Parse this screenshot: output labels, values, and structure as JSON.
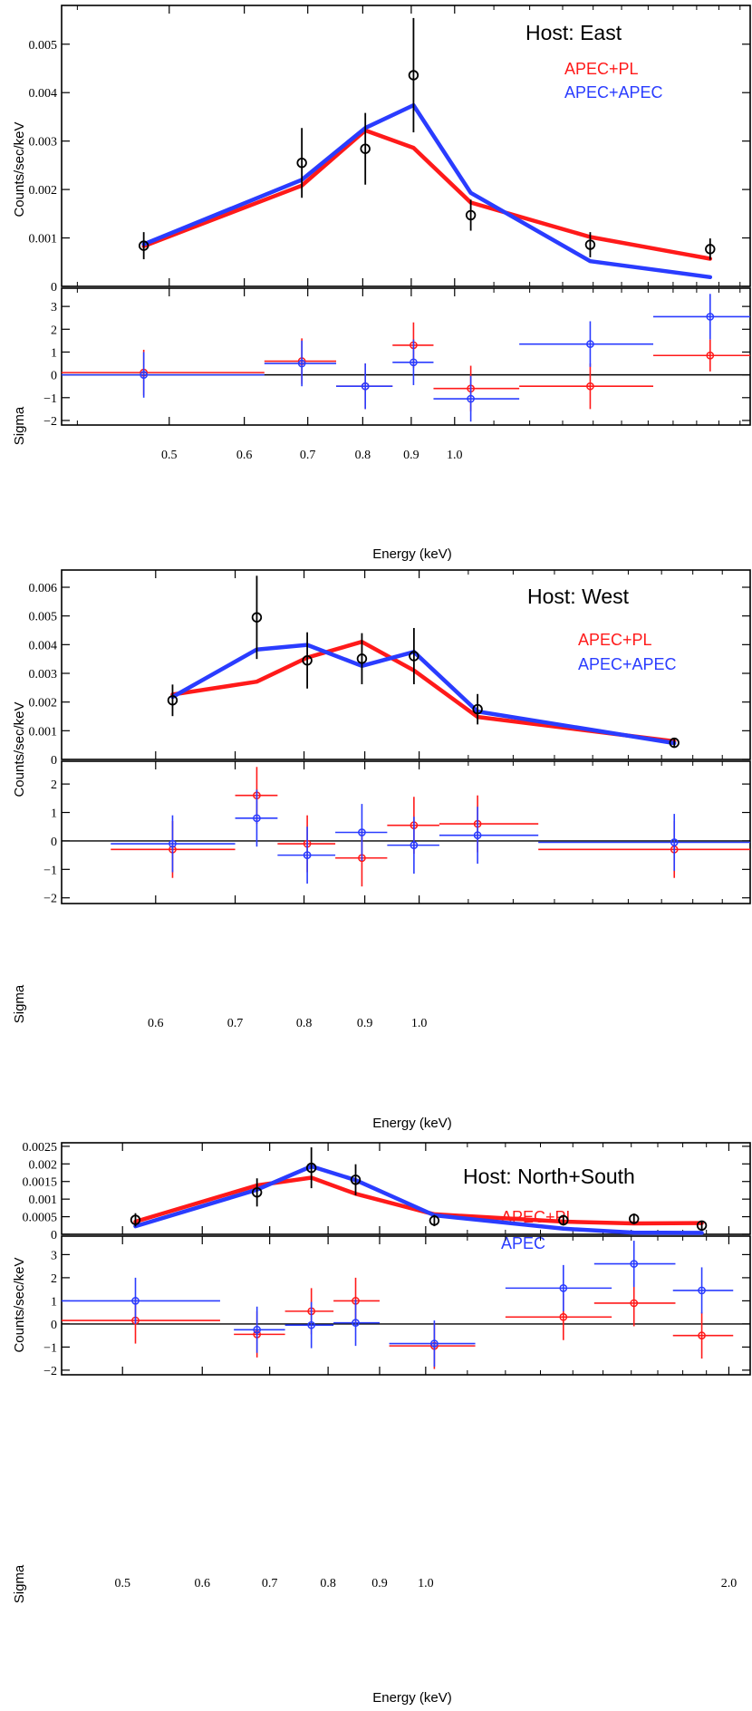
{
  "colors": {
    "apec_pl": "#ff1a1a",
    "apec_apec": "#2a3cff",
    "data": "#000000",
    "axis": "#000000"
  },
  "chart_data": [
    {
      "type": "line",
      "title": "Host: East",
      "xlabel": "Energy (keV)",
      "ylabel": "Counts/sec/keV",
      "residual_ylabel": "Sigma",
      "xscale": "log",
      "xlim": [
        0.385,
        2.05
      ],
      "ylim": [
        0,
        0.0058
      ],
      "residual_ylim": [
        -2.2,
        3.8
      ],
      "yticks": [
        0,
        0.001,
        0.002,
        0.003,
        0.004,
        0.005
      ],
      "ytick_labels": [
        "0",
        "0.001",
        "0.002",
        "0.003",
        "0.004",
        "0.005"
      ],
      "residual_yticks": [
        -2,
        -1,
        0,
        1,
        2,
        3
      ],
      "residual_ytick_labels": [
        "−2",
        "−1",
        "0",
        "1",
        "2",
        "3"
      ],
      "xticks": [
        0.5,
        0.6,
        0.7,
        0.8,
        0.9,
        1.0
      ],
      "xtick_labels": [
        "0.5",
        "0.6",
        "0.7",
        "0.8",
        "0.9",
        "1.0"
      ],
      "legend": [
        "APEC+PL",
        "APEC+APEC"
      ],
      "data_points": [
        {
          "x": 0.47,
          "y": 0.00084,
          "err": 0.00028
        },
        {
          "x": 0.69,
          "y": 0.00255,
          "err": 0.00072
        },
        {
          "x": 0.805,
          "y": 0.00284,
          "err": 0.00074
        },
        {
          "x": 0.905,
          "y": 0.00436,
          "err": 0.00118
        },
        {
          "x": 1.04,
          "y": 0.00147,
          "err": 0.00032
        },
        {
          "x": 1.39,
          "y": 0.00086,
          "err": 0.00026
        },
        {
          "x": 1.86,
          "y": 0.00077,
          "err": 0.00022
        }
      ],
      "series": [
        {
          "name": "APEC+PL",
          "x": [
            0.47,
            0.69,
            0.805,
            0.905,
            1.04,
            1.39,
            1.86
          ],
          "y": [
            0.00083,
            0.00208,
            0.00322,
            0.00286,
            0.00173,
            0.00102,
            0.00057
          ]
        },
        {
          "name": "APEC+APEC",
          "x": [
            0.47,
            0.69,
            0.805,
            0.905,
            1.04,
            1.39,
            1.86
          ],
          "y": [
            0.00087,
            0.0022,
            0.00327,
            0.00374,
            0.00193,
            0.00052,
            0.00019
          ]
        }
      ],
      "residuals": [
        {
          "name": "APEC+PL",
          "points": [
            {
              "x": 0.47,
              "xlo": 0.385,
              "xhi": 0.63,
              "y": 0.1,
              "err": 1.0
            },
            {
              "x": 0.69,
              "xlo": 0.63,
              "xhi": 0.75,
              "y": 0.6,
              "err": 1.0
            },
            {
              "x": 0.805,
              "xlo": 0.75,
              "xhi": 0.86,
              "y": -0.5,
              "err": 1.0
            },
            {
              "x": 0.905,
              "xlo": 0.86,
              "xhi": 0.95,
              "y": 1.3,
              "err": 1.0
            },
            {
              "x": 1.04,
              "xlo": 0.95,
              "xhi": 1.17,
              "y": -0.6,
              "err": 1.0
            },
            {
              "x": 1.39,
              "xlo": 1.17,
              "xhi": 1.62,
              "y": -0.5,
              "err": 1.0
            },
            {
              "x": 1.86,
              "xlo": 1.62,
              "xhi": 2.05,
              "y": 0.85,
              "err": 0.7
            }
          ]
        },
        {
          "name": "APEC+APEC",
          "points": [
            {
              "x": 0.47,
              "xlo": 0.385,
              "xhi": 0.63,
              "y": 0.0,
              "err": 1.0
            },
            {
              "x": 0.69,
              "xlo": 0.63,
              "xhi": 0.75,
              "y": 0.5,
              "err": 1.0
            },
            {
              "x": 0.805,
              "xlo": 0.75,
              "xhi": 0.86,
              "y": -0.5,
              "err": 1.0
            },
            {
              "x": 0.905,
              "xlo": 0.86,
              "xhi": 0.95,
              "y": 0.55,
              "err": 1.0
            },
            {
              "x": 1.04,
              "xlo": 0.95,
              "xhi": 1.17,
              "y": -1.05,
              "err": 1.0
            },
            {
              "x": 1.39,
              "xlo": 1.17,
              "xhi": 1.62,
              "y": 1.35,
              "err": 1.0
            },
            {
              "x": 1.86,
              "xlo": 1.62,
              "xhi": 2.05,
              "y": 2.55,
              "err": 1.0
            }
          ]
        }
      ]
    },
    {
      "type": "line",
      "title": "Host: West",
      "xlabel": "Energy (keV)",
      "ylabel": "Counts/sec/keV",
      "residual_ylabel": "Sigma",
      "xscale": "log",
      "xlim": [
        0.5,
        1.9
      ],
      "ylim": [
        0,
        0.0066
      ],
      "residual_ylim": [
        -2.2,
        2.8
      ],
      "yticks": [
        0,
        0.001,
        0.002,
        0.003,
        0.004,
        0.005,
        0.006
      ],
      "ytick_labels": [
        "0",
        "0.001",
        "0.002",
        "0.003",
        "0.004",
        "0.005",
        "0.006"
      ],
      "residual_yticks": [
        -2,
        -1,
        0,
        1,
        2
      ],
      "residual_ytick_labels": [
        "−2",
        "−1",
        "0",
        "1",
        "2"
      ],
      "xticks": [
        0.6,
        0.7,
        0.8,
        0.9,
        1.0
      ],
      "xtick_labels": [
        "0.6",
        "0.7",
        "0.8",
        "0.9",
        "1.0"
      ],
      "legend": [
        "APEC+PL",
        "APEC+APEC"
      ],
      "data_points": [
        {
          "x": 0.62,
          "y": 0.00206,
          "err": 0.00055
        },
        {
          "x": 0.73,
          "y": 0.00495,
          "err": 0.00145
        },
        {
          "x": 0.805,
          "y": 0.00345,
          "err": 0.00098
        },
        {
          "x": 0.895,
          "y": 0.00351,
          "err": 0.00089
        },
        {
          "x": 0.99,
          "y": 0.0036,
          "err": 0.00098
        },
        {
          "x": 1.12,
          "y": 0.00175,
          "err": 0.00053
        },
        {
          "x": 1.64,
          "y": 0.00058,
          "err": 0.00016
        }
      ],
      "series": [
        {
          "name": "APEC+PL",
          "x": [
            0.62,
            0.73,
            0.805,
            0.895,
            0.99,
            1.12,
            1.64
          ],
          "y": [
            0.00226,
            0.00271,
            0.00355,
            0.0041,
            0.0031,
            0.00148,
            0.00063
          ]
        },
        {
          "name": "APEC+APEC",
          "x": [
            0.62,
            0.73,
            0.805,
            0.895,
            0.99,
            1.12,
            1.64
          ],
          "y": [
            0.00218,
            0.00383,
            0.00399,
            0.00326,
            0.00375,
            0.00167,
            0.00057
          ]
        }
      ],
      "residuals": [
        {
          "name": "APEC+PL",
          "points": [
            {
              "x": 0.62,
              "xlo": 0.55,
              "xhi": 0.7,
              "y": -0.3,
              "err": 1.0
            },
            {
              "x": 0.73,
              "xlo": 0.7,
              "xhi": 0.76,
              "y": 1.6,
              "err": 1.0
            },
            {
              "x": 0.805,
              "xlo": 0.76,
              "xhi": 0.85,
              "y": -0.1,
              "err": 1.0
            },
            {
              "x": 0.895,
              "xlo": 0.85,
              "xhi": 0.94,
              "y": -0.6,
              "err": 1.0
            },
            {
              "x": 0.99,
              "xlo": 0.94,
              "xhi": 1.04,
              "y": 0.55,
              "err": 1.0
            },
            {
              "x": 1.12,
              "xlo": 1.04,
              "xhi": 1.26,
              "y": 0.6,
              "err": 1.0
            },
            {
              "x": 1.64,
              "xlo": 1.26,
              "xhi": 1.9,
              "y": -0.3,
              "err": 1.0
            }
          ]
        },
        {
          "name": "APEC+APEC",
          "points": [
            {
              "x": 0.62,
              "xlo": 0.55,
              "xhi": 0.7,
              "y": -0.1,
              "err": 1.0
            },
            {
              "x": 0.73,
              "xlo": 0.7,
              "xhi": 0.76,
              "y": 0.8,
              "err": 1.0
            },
            {
              "x": 0.805,
              "xlo": 0.76,
              "xhi": 0.85,
              "y": -0.5,
              "err": 1.0
            },
            {
              "x": 0.895,
              "xlo": 0.85,
              "xhi": 0.94,
              "y": 0.3,
              "err": 1.0
            },
            {
              "x": 0.99,
              "xlo": 0.94,
              "xhi": 1.04,
              "y": -0.15,
              "err": 1.0
            },
            {
              "x": 1.12,
              "xlo": 1.04,
              "xhi": 1.26,
              "y": 0.2,
              "err": 1.0
            },
            {
              "x": 1.64,
              "xlo": 1.26,
              "xhi": 1.9,
              "y": -0.05,
              "err": 1.0
            }
          ]
        }
      ]
    },
    {
      "type": "line",
      "title": "Host: North+South",
      "xlabel": "Energy (keV)",
      "ylabel": "Counts/sec/keV",
      "residual_ylabel": "Sigma",
      "xscale": "log",
      "xlim": [
        0.435,
        2.1
      ],
      "ylim": [
        0,
        0.0026
      ],
      "residual_ylim": [
        -2.2,
        3.8
      ],
      "yticks": [
        0,
        0.0005,
        0.001,
        0.0015,
        0.002,
        0.0025
      ],
      "ytick_labels": [
        "0",
        "0.0005",
        "0.001",
        "0.0015",
        "0.002",
        "0.0025"
      ],
      "residual_yticks": [
        -2,
        -1,
        0,
        1,
        2,
        3
      ],
      "residual_ytick_labels": [
        "−2",
        "−1",
        "0",
        "1",
        "2",
        "3"
      ],
      "xticks": [
        0.5,
        0.6,
        0.7,
        0.8,
        0.9,
        1.0,
        2.0
      ],
      "xtick_labels": [
        "0.5",
        "0.6",
        "0.7",
        "0.8",
        "0.9",
        "1.0",
        "2.0"
      ],
      "legend": [
        "APEC+PL",
        "APEC"
      ],
      "data_points": [
        {
          "x": 0.515,
          "y": 0.00041,
          "err": 0.00019
        },
        {
          "x": 0.68,
          "y": 0.00119,
          "err": 0.0004
        },
        {
          "x": 0.77,
          "y": 0.00189,
          "err": 0.00058
        },
        {
          "x": 0.852,
          "y": 0.00155,
          "err": 0.00044
        },
        {
          "x": 1.02,
          "y": 0.00039,
          "err": 0.00016
        },
        {
          "x": 1.37,
          "y": 0.0004,
          "err": 0.00015
        },
        {
          "x": 1.61,
          "y": 0.00044,
          "err": 0.00015
        },
        {
          "x": 1.88,
          "y": 0.00025,
          "err": 0.00013
        }
      ],
      "series": [
        {
          "name": "APEC+PL",
          "x": [
            0.515,
            0.68,
            0.77,
            0.852,
            1.02,
            1.37,
            1.61,
            1.88
          ],
          "y": [
            0.00036,
            0.00139,
            0.00161,
            0.00115,
            0.00057,
            0.00036,
            0.00031,
            0.00032
          ]
        },
        {
          "name": "APEC",
          "x": [
            0.515,
            0.68,
            0.77,
            0.852,
            1.02,
            1.37,
            1.61,
            1.88
          ],
          "y": [
            0.00023,
            0.00127,
            0.00193,
            0.00154,
            0.00054,
            0.00016,
            5e-05,
            4e-05
          ]
        }
      ],
      "residuals": [
        {
          "name": "APEC+PL",
          "points": [
            {
              "x": 0.515,
              "xlo": 0.435,
              "xhi": 0.625,
              "y": 0.15,
              "err": 1.0
            },
            {
              "x": 0.68,
              "xlo": 0.645,
              "xhi": 0.725,
              "y": -0.45,
              "err": 1.0
            },
            {
              "x": 0.77,
              "xlo": 0.725,
              "xhi": 0.81,
              "y": 0.55,
              "err": 1.0
            },
            {
              "x": 0.852,
              "xlo": 0.81,
              "xhi": 0.9,
              "y": 1.0,
              "err": 1.0
            },
            {
              "x": 1.02,
              "xlo": 0.92,
              "xhi": 1.12,
              "y": -0.95,
              "err": 1.0
            },
            {
              "x": 1.37,
              "xlo": 1.2,
              "xhi": 1.53,
              "y": 0.3,
              "err": 1.0
            },
            {
              "x": 1.61,
              "xlo": 1.47,
              "xhi": 1.77,
              "y": 0.9,
              "err": 1.0
            },
            {
              "x": 1.88,
              "xlo": 1.76,
              "xhi": 2.02,
              "y": -0.5,
              "err": 1.0
            }
          ]
        },
        {
          "name": "APEC",
          "points": [
            {
              "x": 0.515,
              "xlo": 0.435,
              "xhi": 0.625,
              "y": 1.0,
              "err": 1.0
            },
            {
              "x": 0.68,
              "xlo": 0.645,
              "xhi": 0.725,
              "y": -0.25,
              "err": 1.0
            },
            {
              "x": 0.77,
              "xlo": 0.725,
              "xhi": 0.81,
              "y": -0.05,
              "err": 1.0
            },
            {
              "x": 0.852,
              "xlo": 0.81,
              "xhi": 0.9,
              "y": 0.05,
              "err": 1.0
            },
            {
              "x": 1.02,
              "xlo": 0.92,
              "xhi": 1.12,
              "y": -0.85,
              "err": 1.0
            },
            {
              "x": 1.37,
              "xlo": 1.2,
              "xhi": 1.53,
              "y": 1.55,
              "err": 1.0
            },
            {
              "x": 1.61,
              "xlo": 1.47,
              "xhi": 1.77,
              "y": 2.6,
              "err": 1.0
            },
            {
              "x": 1.88,
              "xlo": 1.76,
              "xhi": 2.02,
              "y": 1.45,
              "err": 1.0
            }
          ]
        }
      ]
    }
  ]
}
